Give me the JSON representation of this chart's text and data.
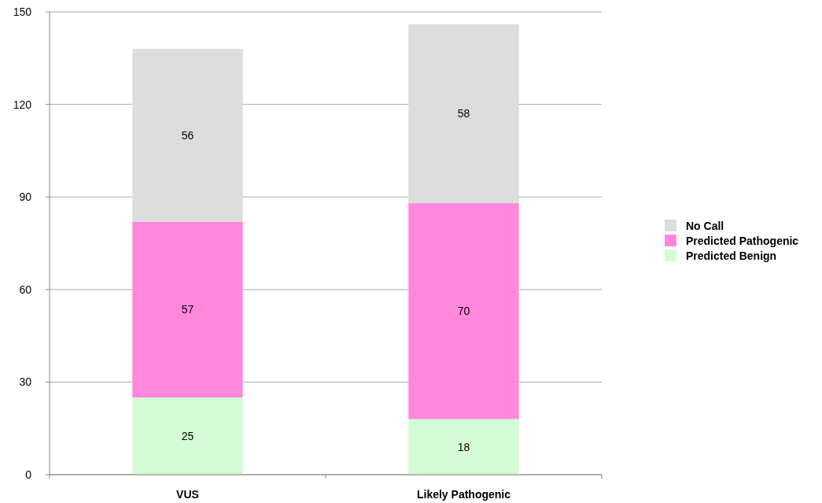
{
  "chart_data": {
    "type": "bar",
    "stacked": true,
    "categories": [
      "VUS",
      "Likely Pathogenic"
    ],
    "series": [
      {
        "name": "Predicted Benign",
        "color": "#d4fcd4",
        "values": [
          25,
          18
        ]
      },
      {
        "name": "Predicted Pathogenic",
        "color": "#ff88dd",
        "values": [
          57,
          70
        ]
      },
      {
        "name": "No Call",
        "color": "#dddddd",
        "values": [
          56,
          58
        ]
      }
    ],
    "ylim": [
      0,
      150
    ],
    "yticks": [
      0,
      30,
      60,
      90,
      120,
      150
    ],
    "grid": "y",
    "legend": "right",
    "data_labels": true
  }
}
